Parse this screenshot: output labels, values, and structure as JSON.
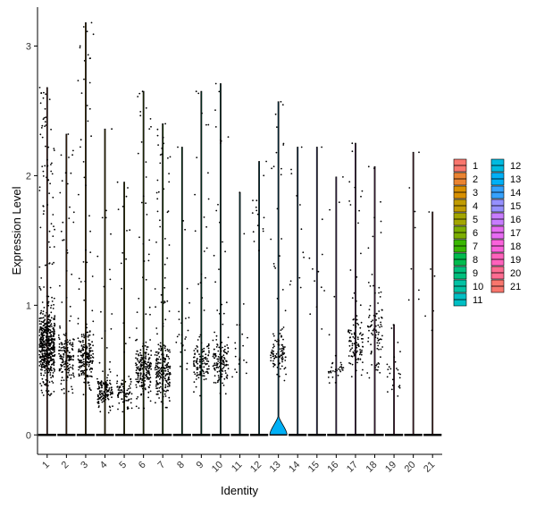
{
  "chart_data": {
    "type": "violin",
    "xlabel": "Identity",
    "ylabel": "Expression Level",
    "ylim": [
      -0.15,
      3.3
    ],
    "yticks": [
      0,
      1,
      2,
      3
    ],
    "grid": false,
    "legend_position": "right",
    "categories": [
      "1",
      "2",
      "3",
      "4",
      "5",
      "6",
      "7",
      "8",
      "9",
      "10",
      "11",
      "12",
      "13",
      "14",
      "15",
      "16",
      "17",
      "18",
      "19",
      "20",
      "21"
    ],
    "colors": [
      "#F8766D",
      "#EA8331",
      "#D89000",
      "#C09B00",
      "#A3A500",
      "#7CAE00",
      "#39B600",
      "#00BB4E",
      "#00BF7D",
      "#00C1A3",
      "#00BFC4",
      "#00BAE0",
      "#00B0F6",
      "#35A2FF",
      "#9590FF",
      "#C77CFF",
      "#E76BF3",
      "#FA62DB",
      "#FF62BC",
      "#FF6C91",
      "#F8766D"
    ],
    "max_expression": [
      2.68,
      2.32,
      3.18,
      2.36,
      1.95,
      2.65,
      2.4,
      2.22,
      2.65,
      2.71,
      1.87,
      2.11,
      2.57,
      2.22,
      2.22,
      1.99,
      2.25,
      2.07,
      0.85,
      2.18,
      1.72
    ],
    "expressing_cell_counts": [
      600,
      180,
      220,
      150,
      90,
      220,
      240,
      25,
      130,
      150,
      20,
      15,
      110,
      12,
      12,
      35,
      110,
      90,
      25,
      8,
      6
    ],
    "dense_range": [
      [
        0.3,
        1.1
      ],
      [
        0.3,
        0.9
      ],
      [
        0.3,
        0.9
      ],
      [
        0.15,
        0.5
      ],
      [
        0.15,
        0.5
      ],
      [
        0.2,
        0.8
      ],
      [
        0.2,
        0.8
      ],
      [
        0.3,
        1.2
      ],
      [
        0.3,
        0.8
      ],
      [
        0.3,
        0.8
      ],
      [
        0.3,
        1.0
      ],
      [
        1.4,
        2.1
      ],
      [
        0.4,
        0.9
      ],
      [
        0.5,
        2.2
      ],
      [
        0.5,
        2.2
      ],
      [
        0.4,
        0.6
      ],
      [
        0.4,
        1.0
      ],
      [
        0.4,
        1.2
      ],
      [
        0.2,
        0.7
      ],
      [
        0.4,
        2.2
      ],
      [
        0.4,
        1.7
      ]
    ],
    "zero_bulge": [
      0,
      0,
      0,
      0,
      0,
      0,
      0,
      0,
      0,
      0,
      0,
      0,
      0.14,
      0,
      0,
      0,
      0,
      0,
      0,
      0,
      0
    ]
  }
}
